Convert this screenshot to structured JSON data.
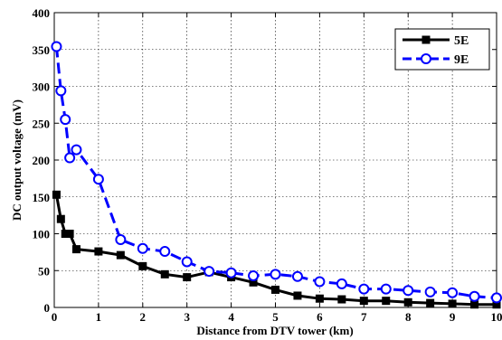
{
  "chart_data": {
    "type": "line",
    "title": "",
    "xlabel": "Distance from DTV tower (km)",
    "ylabel": "DC output voltage (mV)",
    "xlim": [
      0,
      10
    ],
    "ylim": [
      0,
      400
    ],
    "xticks": [
      "0",
      "1",
      "2",
      "3",
      "4",
      "5",
      "6",
      "7",
      "8",
      "9",
      "10"
    ],
    "yticks": [
      "0",
      "50",
      "100",
      "150",
      "200",
      "250",
      "300",
      "350",
      "400"
    ],
    "grid": true,
    "legend_position": "top-right",
    "series": [
      {
        "name": "5E",
        "color": "#000000",
        "line_style": "solid",
        "marker": "square",
        "x": [
          0.05,
          0.15,
          0.25,
          0.35,
          0.5,
          1.0,
          1.5,
          2.0,
          2.5,
          3.0,
          3.5,
          4.0,
          4.5,
          5.0,
          5.5,
          6.0,
          6.5,
          7.0,
          7.5,
          8.0,
          8.5,
          9.0,
          9.5,
          10.0
        ],
        "y": [
          153,
          120,
          100,
          100,
          79,
          76,
          71,
          56,
          45,
          41,
          48,
          41,
          34,
          24,
          16,
          12,
          11,
          9,
          9,
          7,
          6,
          5,
          4,
          4
        ]
      },
      {
        "name": "9E",
        "color": "#0000ff",
        "line_style": "dashed",
        "marker": "circle",
        "x": [
          0.05,
          0.15,
          0.25,
          0.35,
          0.5,
          1.0,
          1.5,
          2.0,
          2.5,
          3.0,
          3.5,
          4.0,
          4.5,
          5.0,
          5.5,
          6.0,
          6.5,
          7.0,
          7.5,
          8.0,
          8.5,
          9.0,
          9.5,
          10.0
        ],
        "y": [
          354,
          294,
          255,
          203,
          214,
          174,
          92,
          80,
          76,
          62,
          49,
          47,
          43,
          45,
          42,
          35,
          32,
          25,
          25,
          23,
          21,
          20,
          15,
          13
        ]
      }
    ]
  }
}
